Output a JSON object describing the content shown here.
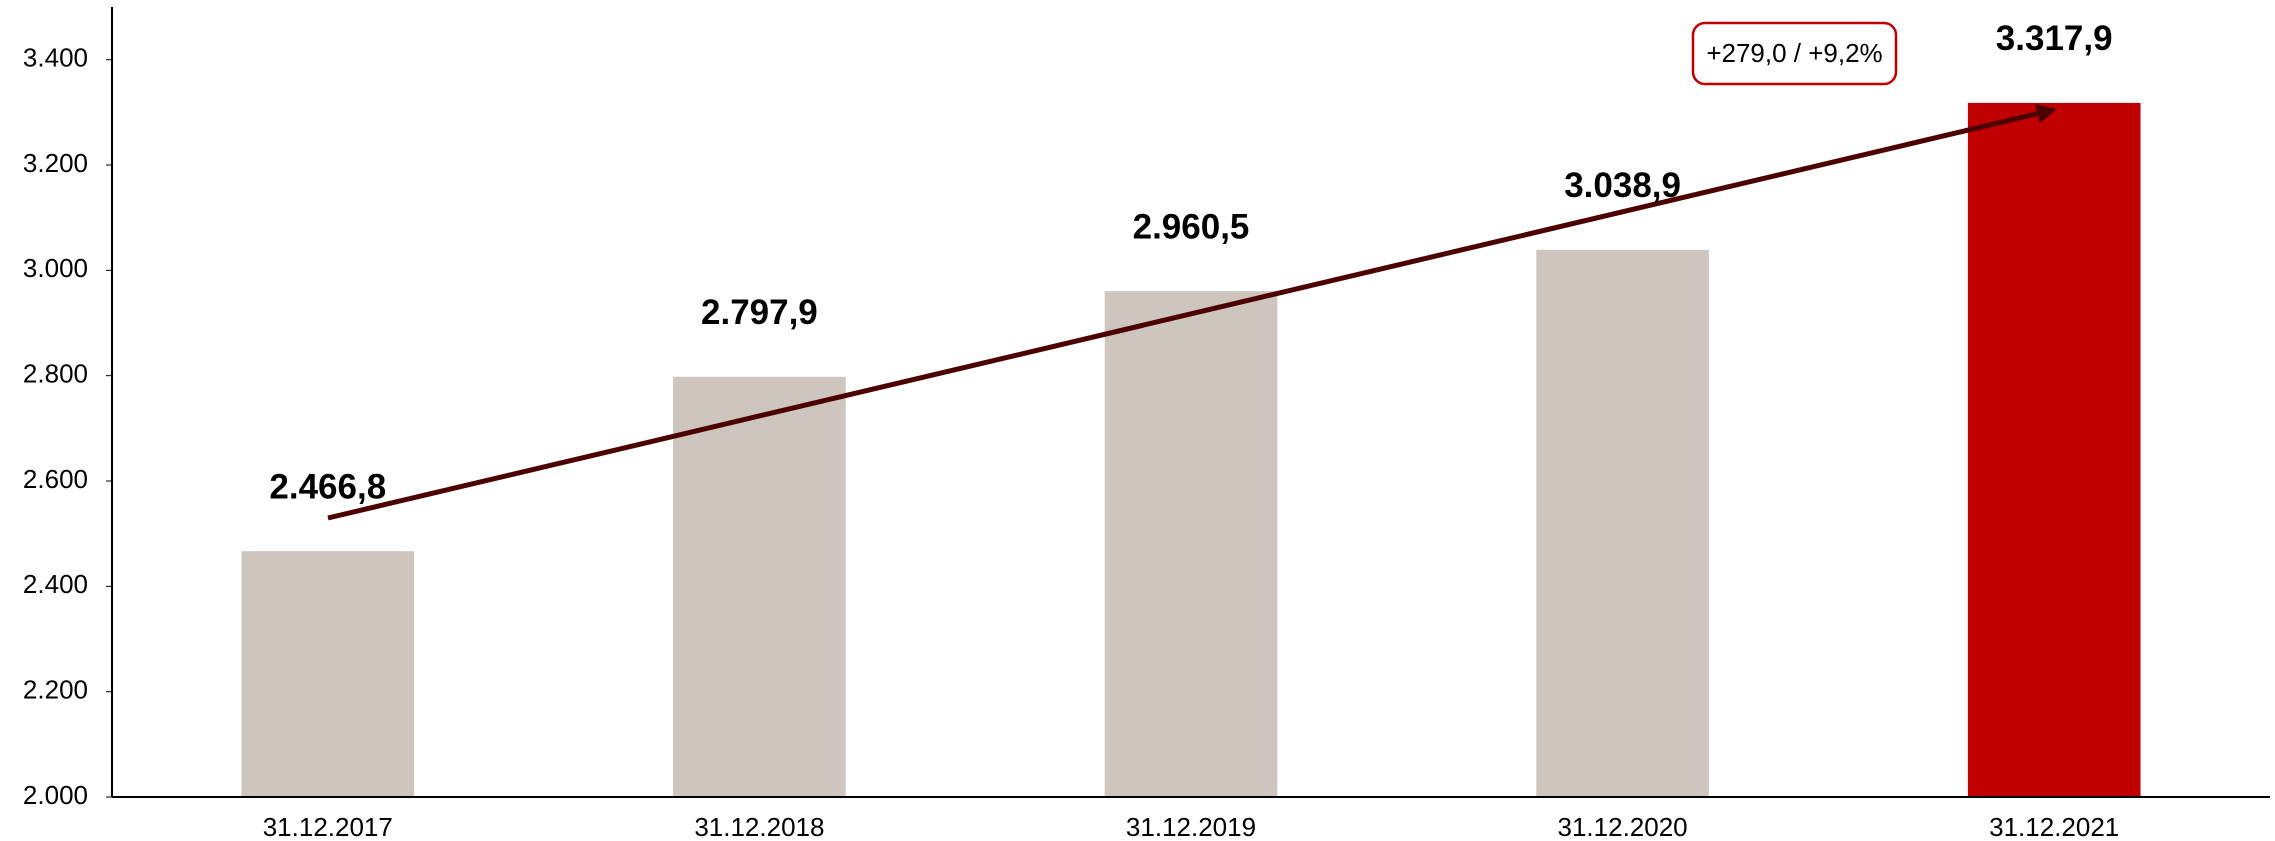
{
  "chart_data": {
    "type": "bar",
    "categories": [
      "31.12.2017",
      "31.12.2018",
      "31.12.2019",
      "31.12.2020",
      "31.12.2021"
    ],
    "values": [
      2466.8,
      2797.9,
      2960.5,
      3038.9,
      3317.9
    ],
    "value_labels": [
      "2.466,8",
      "2.797,9",
      "2.960,5",
      "3.038,9",
      "3.317,9"
    ],
    "colors": [
      "#cec5bf",
      "#cec5bf",
      "#cec5bf",
      "#cec5bf",
      "#c00000"
    ],
    "ylim": [
      2000,
      3500
    ],
    "yticks": [
      {
        "value": 2000,
        "label": "2.000"
      },
      {
        "value": 2200,
        "label": "2.200"
      },
      {
        "value": 2400,
        "label": "2.400"
      },
      {
        "value": 2600,
        "label": "2.600"
      },
      {
        "value": 2800,
        "label": "2.800"
      },
      {
        "value": 3000,
        "label": "3.000"
      },
      {
        "value": 3200,
        "label": "3.200"
      },
      {
        "value": 3400,
        "label": "3.400"
      }
    ],
    "annotation": "+279,0 / +9,2%",
    "grid": false
  }
}
